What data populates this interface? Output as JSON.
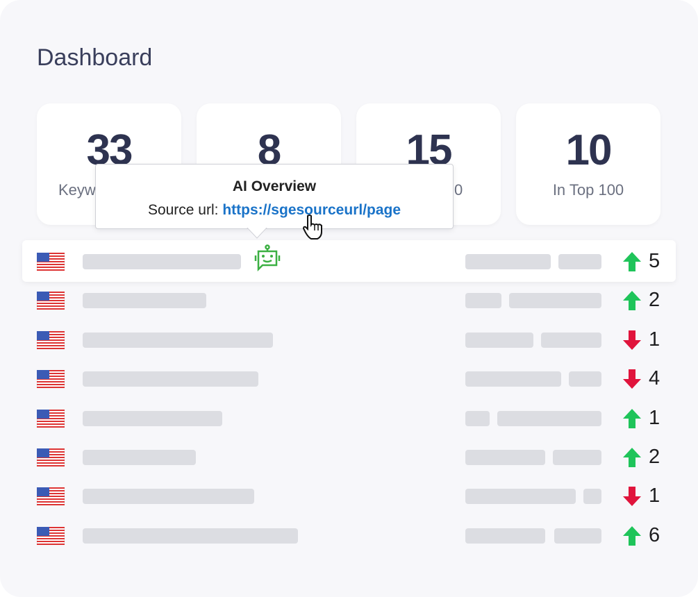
{
  "header": {
    "title": "Dashboard"
  },
  "stats": [
    {
      "value": "33",
      "label": "Keyw"
    },
    {
      "value": "8"
    },
    {
      "value": "15",
      "label": "0"
    },
    {
      "value": "10",
      "label": "In Top 100"
    }
  ],
  "tooltip": {
    "title": "AI Overview",
    "source_label": "Source url:",
    "url": "https://sgesourceurl/page"
  },
  "rows": [
    {
      "direction": "up",
      "change": 5
    },
    {
      "direction": "up",
      "change": 2
    },
    {
      "direction": "down",
      "change": 1
    },
    {
      "direction": "down",
      "change": 4
    },
    {
      "direction": "up",
      "change": 1
    },
    {
      "direction": "up",
      "change": 2
    },
    {
      "direction": "down",
      "change": 1
    },
    {
      "direction": "up",
      "change": 6
    }
  ]
}
